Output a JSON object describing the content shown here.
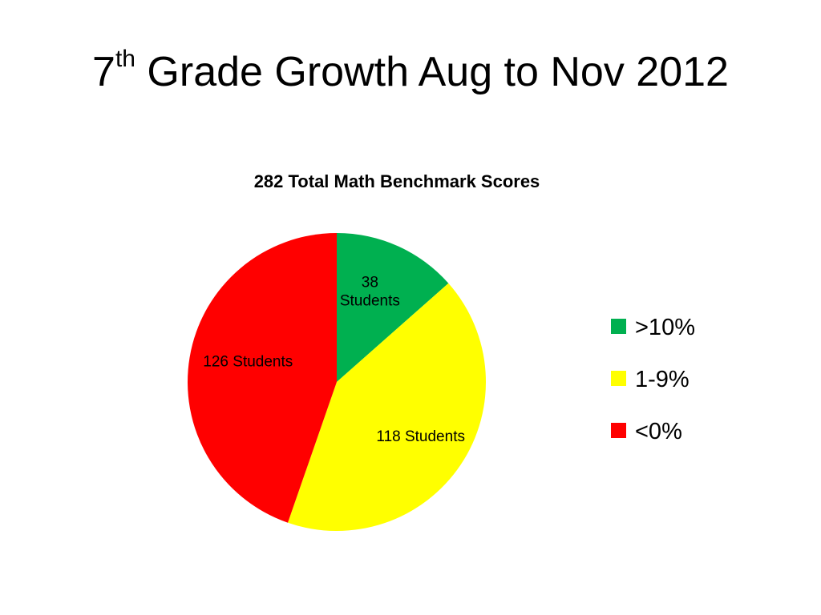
{
  "slide": {
    "title_number": "7",
    "title_sup": "th",
    "title_rest": " Grade Growth Aug to Nov 2012"
  },
  "chart_data": {
    "type": "pie",
    "title": "282 Total Math Benchmark Scores",
    "categories": [
      ">10%",
      "1-9%",
      "<0%"
    ],
    "values": [
      38,
      118,
      126
    ],
    "colors": [
      "#00b050",
      "#ffff00",
      "#ff0000"
    ],
    "data_labels": [
      [
        "38",
        "Students"
      ],
      [
        "118 Students"
      ],
      [
        "126 Students"
      ]
    ],
    "legend_position": "right",
    "start_angle": "12 o'clock",
    "direction": "clockwise"
  }
}
